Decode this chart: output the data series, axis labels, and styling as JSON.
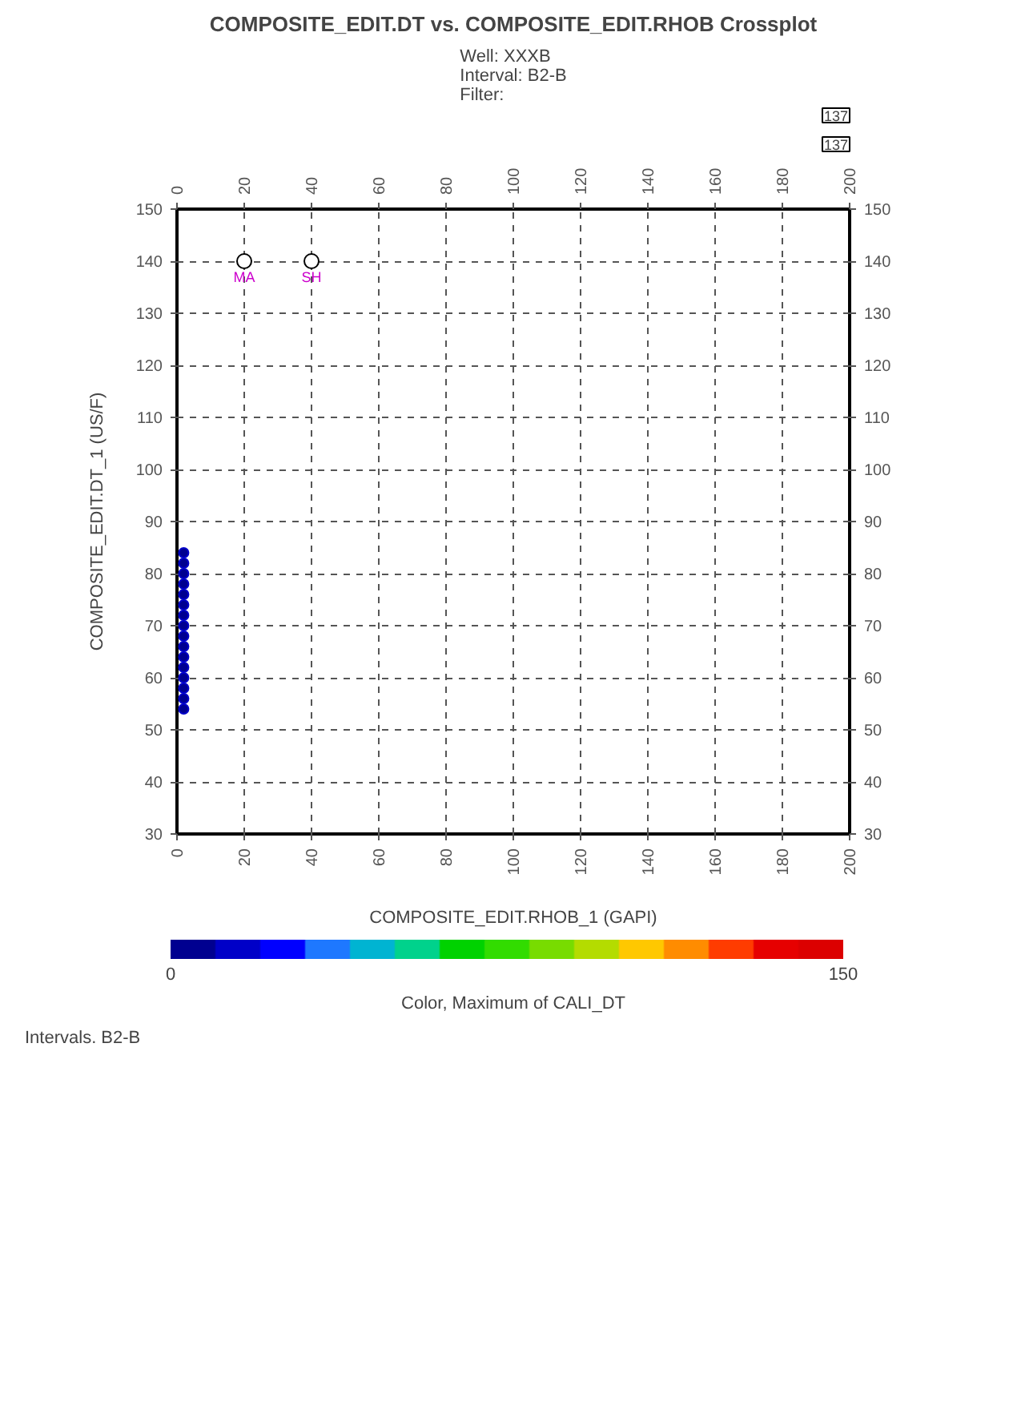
{
  "chart_data": {
    "type": "scatter",
    "title": "COMPOSITE_EDIT.DT vs. COMPOSITE_EDIT.RHOB Crossplot",
    "subtitle": "Well: XXXB\nInterval: B2-B\nFilter:",
    "xlabel": "COMPOSITE_EDIT.RHOB_1 (GAPI)",
    "ylabel": "COMPOSITE_EDIT.DT_1 (US/F)",
    "clabel": "Color, Maximum of CALI_DT",
    "clim": [
      0,
      150
    ],
    "cticks": [
      0,
      150
    ],
    "xlim": [
      0,
      200
    ],
    "xticks": [
      0,
      20,
      40,
      60,
      80,
      100,
      120,
      140,
      160,
      180,
      200
    ],
    "x2lim": [
      0,
      200
    ],
    "x2ticks": [
      0,
      20,
      40,
      60,
      80,
      100,
      120,
      140,
      160,
      180,
      200
    ],
    "ylim": [
      30,
      150
    ],
    "yticks": [
      30,
      40,
      50,
      60,
      70,
      80,
      90,
      100,
      110,
      120,
      130,
      140,
      150
    ],
    "y2lim": [
      30,
      150
    ],
    "y2ticks": [
      30,
      40,
      50,
      60,
      70,
      80,
      90,
      100,
      110,
      120,
      130,
      140,
      150
    ],
    "grid": true,
    "marker": "circle",
    "series": [
      {
        "color": "#0000c8",
        "x": [
          2,
          2,
          2,
          2,
          2,
          2,
          2,
          2,
          2,
          2,
          2,
          2,
          2,
          2,
          2,
          2
        ],
        "values": [
          54,
          56,
          58,
          60,
          62,
          64,
          66,
          68,
          70,
          72,
          74,
          76,
          78,
          80,
          82,
          84
        ],
        "cvalues": [
          5,
          5,
          5,
          5,
          5,
          5,
          5,
          5,
          5,
          5,
          5,
          5,
          5,
          5,
          5,
          5
        ]
      },
      {
        "color": "#000000",
        "x": [
          20,
          40
        ],
        "values": [
          140,
          140
        ]
      }
    ],
    "annotations": [
      {
        "text": "MA",
        "x": 20,
        "y": 140
      },
      {
        "text": "SH",
        "x": 40,
        "y": 140
      },
      "137",
      "137",
      "Intervals. B2-B"
    ]
  }
}
